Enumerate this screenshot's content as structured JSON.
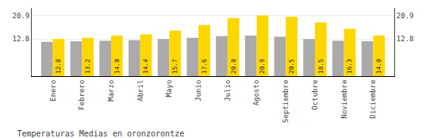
{
  "chart_data": {
    "type": "bar",
    "title": "Temperaturas Medias en oronzorontze",
    "categories": [
      "Enero",
      "Febrero",
      "Marzo",
      "Abril",
      "Mayo",
      "Junio",
      "Julio",
      "Agosto",
      "Septiembre",
      "Octubre",
      "Noviembre",
      "Diciembre"
    ],
    "series": [
      {
        "color": "#AAAAAA",
        "values": [
          11.8,
          12.0,
          12.2,
          12.4,
          12.8,
          13.2,
          13.8,
          14.0,
          13.6,
          12.8,
          12.2,
          12.0
        ]
      },
      {
        "color": "#FFD700",
        "values": [
          12.8,
          13.2,
          14.0,
          14.4,
          15.7,
          17.6,
          20.0,
          20.9,
          20.5,
          18.5,
          16.3,
          14.0
        ],
        "value_labels": [
          "12.8",
          "13.2",
          "14.0",
          "14.4",
          "15.7",
          "17.6",
          "20.0",
          "20.9",
          "20.5",
          "18.5",
          "16.3",
          "14.0"
        ],
        "data_labels": true
      }
    ],
    "ylim": [
      0,
      23.5
    ],
    "yticks": [
      12.8,
      20.9
    ],
    "y2lim": [
      0,
      23.5
    ],
    "y2ticks": [
      12.8,
      20.9
    ],
    "grid": true
  }
}
